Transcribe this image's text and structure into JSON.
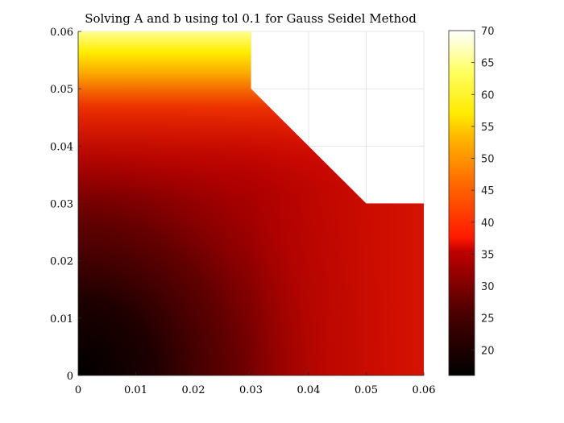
{
  "chart_data": {
    "type": "heatmap",
    "title": "Solving A and b using tol 0.1 for Gauss Seidel Method",
    "xlabel": "",
    "ylabel": "",
    "xlim": [
      0,
      0.06
    ],
    "ylim": [
      0,
      0.06
    ],
    "xticks": [
      "0",
      "0.01",
      "0.02",
      "0.03",
      "0.04",
      "0.05",
      "0.06"
    ],
    "yticks": [
      "0",
      "0.01",
      "0.02",
      "0.03",
      "0.04",
      "0.05",
      "0.06"
    ],
    "grid": true,
    "colormap": "hot",
    "domain_polygon": [
      [
        0,
        0
      ],
      [
        0.06,
        0
      ],
      [
        0.06,
        0.03
      ],
      [
        0.05,
        0.03
      ],
      [
        0.03,
        0.05
      ],
      [
        0.03,
        0.06
      ],
      [
        0,
        0.06
      ]
    ],
    "field_samples": [
      {
        "x": 0.0,
        "y": 0.0,
        "value": 16
      },
      {
        "x": 0.01,
        "y": 0.01,
        "value": 21
      },
      {
        "x": 0.02,
        "y": 0.02,
        "value": 26
      },
      {
        "x": 0.03,
        "y": 0.03,
        "value": 31
      },
      {
        "x": 0.04,
        "y": 0.04,
        "value": 33
      },
      {
        "x": 0.06,
        "y": 0.0,
        "value": 36
      },
      {
        "x": 0.06,
        "y": 0.03,
        "value": 36
      },
      {
        "x": 0.0,
        "y": 0.03,
        "value": 32
      },
      {
        "x": 0.0,
        "y": 0.045,
        "value": 45
      },
      {
        "x": 0.0,
        "y": 0.055,
        "value": 58
      },
      {
        "x": 0.0,
        "y": 0.06,
        "value": 70
      },
      {
        "x": 0.03,
        "y": 0.06,
        "value": 65
      }
    ],
    "colorbar": {
      "range": [
        16,
        70
      ],
      "ticks": [
        "20",
        "25",
        "30",
        "35",
        "40",
        "45",
        "50",
        "55",
        "60",
        "65",
        "70"
      ]
    }
  }
}
